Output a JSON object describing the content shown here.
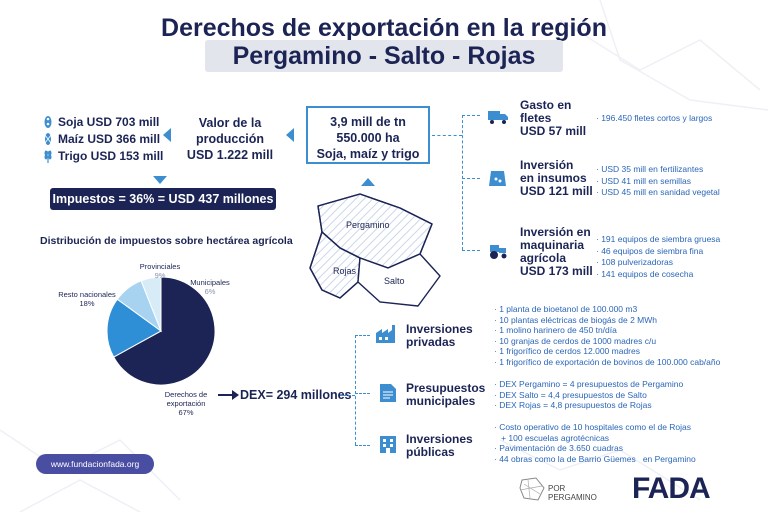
{
  "title": {
    "line1": "Derechos de exportación en la región",
    "line2": "Pergamino - Salto - Rojas"
  },
  "crops": [
    {
      "label": "Soja USD 703 mill",
      "icon": "soy-icon"
    },
    {
      "label": "Maíz USD 366 mill",
      "icon": "corn-icon"
    },
    {
      "label": "Trigo USD 153 mill",
      "icon": "wheat-icon"
    }
  ],
  "production": {
    "line1": "Valor de la",
    "line2": "producción",
    "line3": "USD 1.222 mill"
  },
  "summary": {
    "line1": "3,9 mill de tn",
    "line2": "550.000 ha",
    "line3": "Soja, maíz y trigo"
  },
  "taxes": "Impuestos = 36% = USD 437 millones",
  "distribution": {
    "title": "Distribución de impuestos sobre hectárea agrícola",
    "slices": [
      {
        "name": "Derechos de exportación",
        "label_lines": [
          "Derechos de",
          "exportación",
          "67%"
        ],
        "value": 67,
        "color": "#1b2454"
      },
      {
        "name": "Resto nacionales",
        "label_lines": [
          "Resto nacionales",
          "18%"
        ],
        "value": 18,
        "color": "#2f8fd6"
      },
      {
        "name": "Provinciales",
        "label_lines": [
          "Provinciales",
          "9%"
        ],
        "value": 9,
        "color": "#a8d3f0"
      },
      {
        "name": "Municipales",
        "label_lines": [
          "Municipales",
          "6%"
        ],
        "value": 6,
        "color": "#d8ecf8"
      }
    ]
  },
  "dex": "DEX= 294 millones",
  "map": {
    "labels": [
      "Pergamino",
      "Rojas",
      "Salto"
    ]
  },
  "spending": [
    {
      "title_lines": [
        "Gasto en",
        "fletes",
        "USD 57 mill"
      ],
      "icon": "truck-icon",
      "bullets": [
        "· 196.450 fletes cortos y largos"
      ]
    },
    {
      "title_lines": [
        "Inversión",
        "en insumos",
        "USD 121 mill"
      ],
      "icon": "seeds-icon",
      "bullets": [
        "· USD 35 mill en fertilizantes",
        "· USD 41 mill en semillas",
        "· USD 45 mill en sanidad vegetal"
      ]
    },
    {
      "title_lines": [
        "Inversión en",
        "maquinaria",
        "agrícola",
        "USD 173 mill"
      ],
      "icon": "tractor-icon",
      "bullets": [
        "· 191 equipos de siembra gruesa",
        "· 46 equipos de siembra fina",
        "· 108 pulverizadoras",
        "· 141 equipos de cosecha"
      ]
    }
  ],
  "dex_uses": [
    {
      "title_lines": [
        "Inversiones",
        "privadas"
      ],
      "icon": "factory-icon",
      "bullets": [
        "· 1 planta de bioetanol de 100.000 m3",
        "· 10 plantas eléctricas de biogás de 2 MWh",
        "· 1 molino harinero de 450 tn/día",
        "· 10 granjas de cerdos de 1000 madres c/u",
        "· 1 frigorífico de cerdos 12.000 madres",
        "· 1 frigorífico de exportación de bovinos de 100.000 cab/año"
      ]
    },
    {
      "title_lines": [
        "Presupuestos",
        "municipales"
      ],
      "icon": "document-icon",
      "bullets": [
        "· DEX Pergamino = 4 presupuestos de Pergamino",
        "· DEX Salto = 4,4 presupuestos de Salto",
        "· DEX Rojas = 4,8 presupuestos de Rojas"
      ]
    },
    {
      "title_lines": [
        "Inversiones",
        "públicas"
      ],
      "icon": "building-icon",
      "bullets": [
        "· Costo operativo de 10 hospitales como el de Rojas",
        "   + 100 escuelas agrotécnicas",
        "· Pavimentación de 3.650 cuadras",
        "· 44 obras como la de Barrio Güemes   en Pergamino"
      ]
    }
  ],
  "footer": {
    "website": "www.fundacionfada.org",
    "partner_logo_lines": [
      "POR",
      "PERGAMINO"
    ],
    "logo": "FADA"
  },
  "colors": {
    "navy": "#1b2454",
    "accent_blue": "#3d8ed0",
    "bullet_blue": "#2a66b8"
  }
}
